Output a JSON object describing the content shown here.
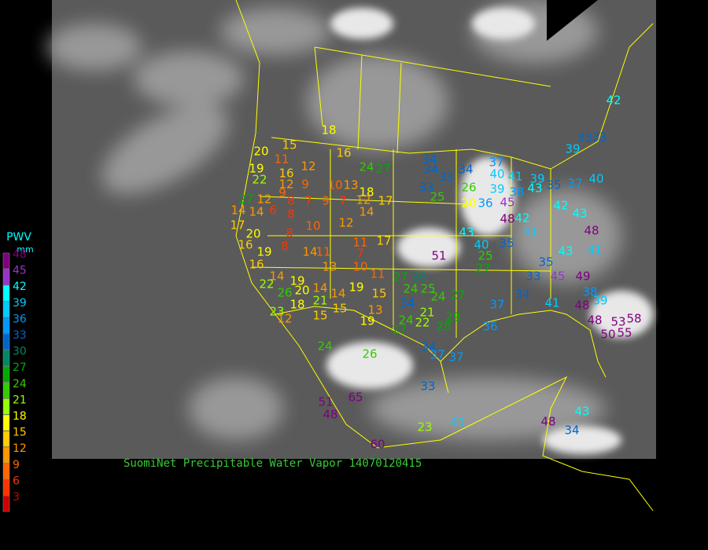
{
  "caption": "SuomiNet Precipitable Water Vapor 14070120415",
  "legend": {
    "title": "PWV",
    "unit": "mm",
    "levels": [
      {
        "value": 48,
        "color": "#800080"
      },
      {
        "value": 45,
        "color": "#9933cc"
      },
      {
        "value": 42,
        "color": "#00ffff"
      },
      {
        "value": 39,
        "color": "#00ccff"
      },
      {
        "value": 36,
        "color": "#0099ff"
      },
      {
        "value": 33,
        "color": "#0066cc"
      },
      {
        "value": 30,
        "color": "#008866"
      },
      {
        "value": 27,
        "color": "#00aa00"
      },
      {
        "value": 24,
        "color": "#33cc00"
      },
      {
        "value": 21,
        "color": "#99ff00"
      },
      {
        "value": 18,
        "color": "#ffff00"
      },
      {
        "value": 15,
        "color": "#ffcc00"
      },
      {
        "value": 12,
        "color": "#ff9900"
      },
      {
        "value": 9,
        "color": "#ff6600"
      },
      {
        "value": 6,
        "color": "#ff3300"
      },
      {
        "value": 3,
        "color": "#cc0000"
      }
    ]
  },
  "stations": [
    18,
    16,
    15,
    11,
    12,
    20,
    19,
    22,
    16,
    24,
    27,
    12,
    9,
    10,
    13,
    18,
    12,
    17,
    27,
    12,
    9,
    8,
    7,
    9,
    7,
    14,
    14,
    6,
    8,
    10,
    12,
    14,
    17,
    20,
    8,
    11,
    17,
    7,
    16,
    19,
    14,
    11,
    13,
    10,
    11,
    16,
    8,
    27,
    30,
    14,
    19,
    22,
    26,
    20,
    14,
    14,
    19,
    15,
    21,
    18,
    23,
    12,
    15,
    15,
    19,
    13,
    24,
    25,
    24,
    21,
    34,
    24,
    22,
    27,
    28,
    29,
    27,
    24,
    26,
    34,
    37,
    37,
    33,
    65,
    51,
    48,
    23,
    41,
    60,
    48,
    43,
    34,
    51,
    43,
    40,
    25,
    27,
    37,
    34,
    36,
    41,
    48,
    38,
    39,
    48,
    53,
    58,
    50,
    55,
    49,
    43,
    45,
    41,
    48,
    43,
    35,
    33,
    41,
    35,
    48,
    42,
    45,
    38,
    39,
    36,
    20,
    40,
    41,
    37,
    34,
    34,
    33,
    34,
    33,
    25,
    26,
    43,
    39,
    35,
    37,
    40,
    42,
    39,
    33,
    33,
    42
  ]
}
